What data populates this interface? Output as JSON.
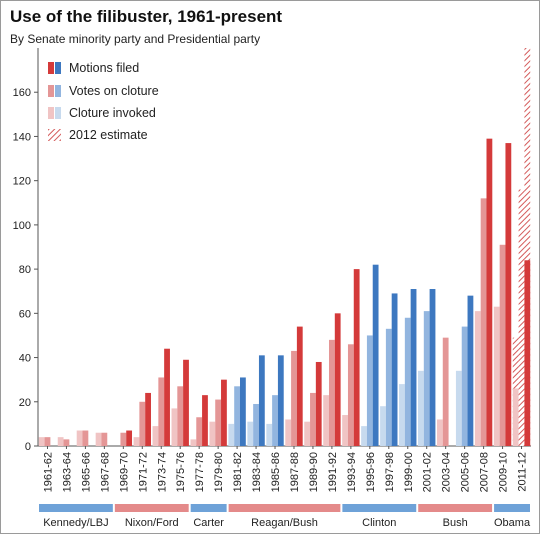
{
  "title": "Use of the filibuster, 1961-present",
  "subtitle": "By Senate minority party and Presidential party",
  "colors": {
    "dem_dark": "#d43a3a",
    "dem_mid": "#e49696",
    "dem_light": "#f0c4c4",
    "rep_dark": "#3d78c0",
    "rep_mid": "#92b5df",
    "rep_light": "#c7daee",
    "hatch": "#d45a5a",
    "pres_dem": "#6ea2d8",
    "pres_rep": "#e48a8a"
  },
  "legend": [
    {
      "label": "Motions filed"
    },
    {
      "label": "Votes on cloture"
    },
    {
      "label": "Cloture invoked"
    },
    {
      "label": "2012 estimate"
    }
  ],
  "presidents": [
    {
      "name": "Kennedy/LBJ",
      "party": "D",
      "start": 0,
      "end": 4
    },
    {
      "name": "Nixon/Ford",
      "party": "R",
      "start": 4,
      "end": 8
    },
    {
      "name": "Carter",
      "party": "D",
      "start": 8,
      "end": 10
    },
    {
      "name": "Reagan/Bush",
      "party": "R",
      "start": 10,
      "end": 16
    },
    {
      "name": "Clinton",
      "party": "D",
      "start": 16,
      "end": 20
    },
    {
      "name": "Bush",
      "party": "R",
      "start": 20,
      "end": 24
    },
    {
      "name": "Obama",
      "party": "D",
      "start": 24,
      "end": 26
    }
  ],
  "chart_data": {
    "type": "bar",
    "title": "Use of the filibuster, 1961-present",
    "subtitle": "By Senate minority party and Presidential party",
    "categories": [
      "1961-62",
      "1963-64",
      "1965-66",
      "1967-68",
      "1969-70",
      "1971-72",
      "1973-74",
      "1975-76",
      "1977-78",
      "1979-80",
      "1981-82",
      "1983-84",
      "1985-86",
      "1987-88",
      "1989-90",
      "1991-92",
      "1993-94",
      "1995-96",
      "1997-98",
      "1999-00",
      "2001-02",
      "2003-04",
      "2005-06",
      "2007-08",
      "2009-10",
      "2011-12"
    ],
    "minority_party": [
      "R",
      "R",
      "R",
      "R",
      "R",
      "R",
      "R",
      "R",
      "R",
      "R",
      "D",
      "D",
      "D",
      "R",
      "R",
      "R",
      "R",
      "D",
      "D",
      "D",
      "D",
      "R",
      "D",
      "R",
      "R",
      "R"
    ],
    "series": [
      {
        "name": "Motions filed",
        "values": [
          0,
          0,
          0,
          0,
          7,
          24,
          44,
          39,
          23,
          30,
          31,
          41,
          41,
          54,
          38,
          60,
          80,
          82,
          69,
          71,
          71,
          0,
          68,
          139,
          137,
          84
        ]
      },
      {
        "name": "Votes on cloture",
        "values": [
          4,
          3,
          7,
          6,
          6,
          20,
          31,
          27,
          13,
          21,
          27,
          19,
          23,
          43,
          24,
          48,
          46,
          50,
          53,
          58,
          61,
          49,
          54,
          112,
          91,
          0
        ]
      },
      {
        "name": "Cloture invoked",
        "values": [
          4,
          4,
          7,
          6,
          0,
          4,
          9,
          17,
          3,
          11,
          10,
          11,
          10,
          12,
          11,
          23,
          14,
          9,
          18,
          28,
          34,
          12,
          34,
          61,
          63,
          26
        ]
      },
      {
        "name": "2012 estimate",
        "values": [
          0,
          0,
          0,
          0,
          0,
          0,
          0,
          0,
          0,
          0,
          0,
          0,
          0,
          0,
          0,
          0,
          0,
          0,
          0,
          0,
          0,
          0,
          0,
          0,
          0,
          180
        ]
      }
    ],
    "estimate_2012": {
      "votes_on_cloture": 116,
      "cloture_invoked": 49,
      "motions_filed": 180
    },
    "ylim": [
      0,
      180
    ],
    "yticks": [
      0,
      20,
      40,
      60,
      80,
      100,
      120,
      140,
      160
    ],
    "grid": false,
    "legend_position": "top-left"
  }
}
